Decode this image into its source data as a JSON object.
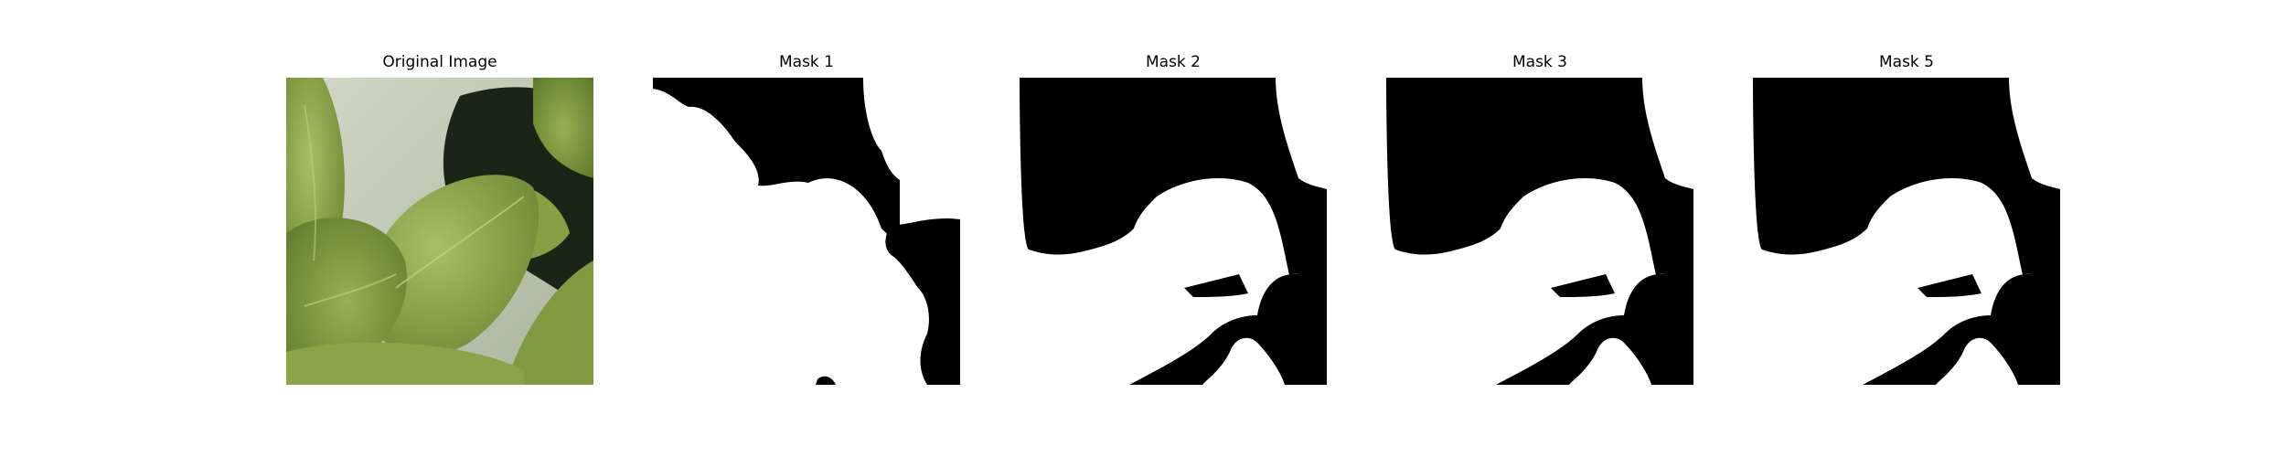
{
  "figure": {
    "panels": [
      {
        "title": "Original Image",
        "kind": "photo"
      },
      {
        "title": "Mask 1",
        "kind": "mask"
      },
      {
        "title": "Mask 2",
        "kind": "mask"
      },
      {
        "title": "Mask 3",
        "kind": "mask"
      },
      {
        "title": "Mask 5",
        "kind": "mask"
      }
    ]
  },
  "colors": {
    "mask_foreground": "#000000",
    "mask_background": "#ffffff",
    "leaf_light": "#9cb35a",
    "leaf_mid": "#7f9a3f",
    "leaf_dark": "#5d7a2a",
    "wall": "#c9d0bf",
    "shadow": "#1c2418"
  }
}
